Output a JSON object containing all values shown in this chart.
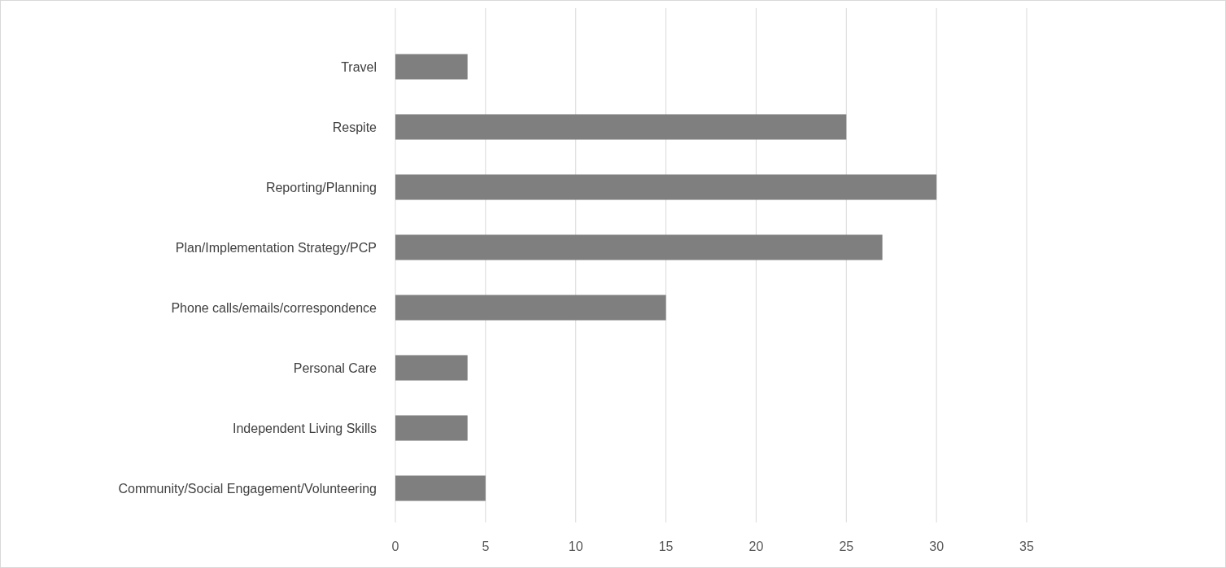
{
  "chart_data": {
    "type": "bar",
    "orientation": "horizontal",
    "categories": [
      "Travel",
      "Respite",
      "Reporting/Planning",
      "Plan/Implementation Strategy/PCP",
      "Phone calls/emails/correspondence",
      "Personal Care",
      "Independent Living Skills",
      "Community/Social Engagement/Volunteering"
    ],
    "values": [
      4,
      25,
      30,
      27,
      15,
      4,
      4,
      5
    ],
    "color": "#7f7f7f",
    "xlim": [
      0,
      35
    ],
    "xticks": [
      0,
      5,
      10,
      15,
      20,
      25,
      30,
      35
    ],
    "grid": "x"
  }
}
